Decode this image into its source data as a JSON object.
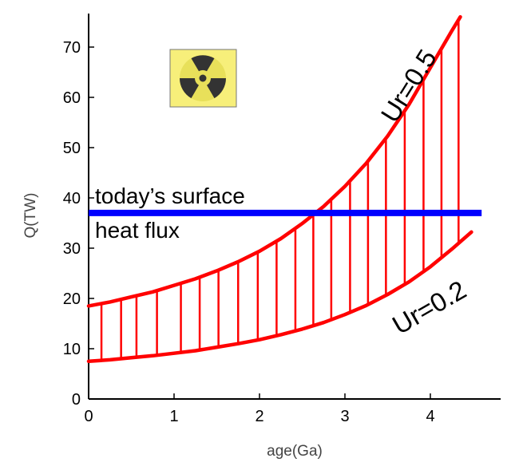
{
  "chart_data": {
    "type": "line",
    "title": "",
    "xlabel": "age(Ga)",
    "ylabel": "Q(TW)",
    "xlim": [
      0,
      4.6
    ],
    "ylim": [
      0,
      77
    ],
    "x_ticks": [
      "0",
      "1",
      "2",
      "3",
      "4"
    ],
    "y_ticks": [
      "0",
      "10",
      "20",
      "30",
      "40",
      "50",
      "60",
      "70"
    ],
    "grid": false,
    "series": [
      {
        "name": "Ur=0.5",
        "color": "#ff0000",
        "x": [
          0,
          0.25,
          0.5,
          0.75,
          1.0,
          1.25,
          1.5,
          1.75,
          2.0,
          2.25,
          2.5,
          2.75,
          3.0,
          3.25,
          3.5,
          3.75,
          4.0,
          4.25,
          4.35
        ],
        "y": [
          18.5,
          19.3,
          20.3,
          21.3,
          22.6,
          23.9,
          25.5,
          27.3,
          29.4,
          31.9,
          34.9,
          38.3,
          42.3,
          46.9,
          52.3,
          58.6,
          65.9,
          73.2,
          76.0
        ]
      },
      {
        "name": "Ur=0.2",
        "color": "#ff0000",
        "x": [
          0,
          0.25,
          0.5,
          0.75,
          1.0,
          1.25,
          1.5,
          1.75,
          2.0,
          2.25,
          2.5,
          2.75,
          3.0,
          3.25,
          3.5,
          3.75,
          4.0,
          4.25,
          4.48
        ],
        "y": [
          7.5,
          7.8,
          8.2,
          8.6,
          9.1,
          9.6,
          10.3,
          11.0,
          11.8,
          12.8,
          13.9,
          15.2,
          16.8,
          18.6,
          20.8,
          23.3,
          26.3,
          29.8,
          33.2
        ]
      },
      {
        "name": "today’s surface heat flux",
        "color": "#0000ff",
        "x": [
          0,
          4.6
        ],
        "y": [
          37,
          37
        ]
      }
    ],
    "hatch_x": [
      0.15,
      0.38,
      0.56,
      0.8,
      1.08,
      1.3,
      1.52,
      1.75,
      1.98,
      2.2,
      2.42,
      2.63,
      2.84,
      3.06,
      3.27,
      3.48,
      3.7,
      3.92,
      4.13,
      4.33
    ],
    "annotations": {
      "blue_line_label_1": "today’s surface",
      "blue_line_label_2": "heat flux",
      "upper_curve_label": "Ur=0.5",
      "lower_curve_label": "Ur=0.2"
    },
    "icon": "radiation-symbol-icon"
  }
}
